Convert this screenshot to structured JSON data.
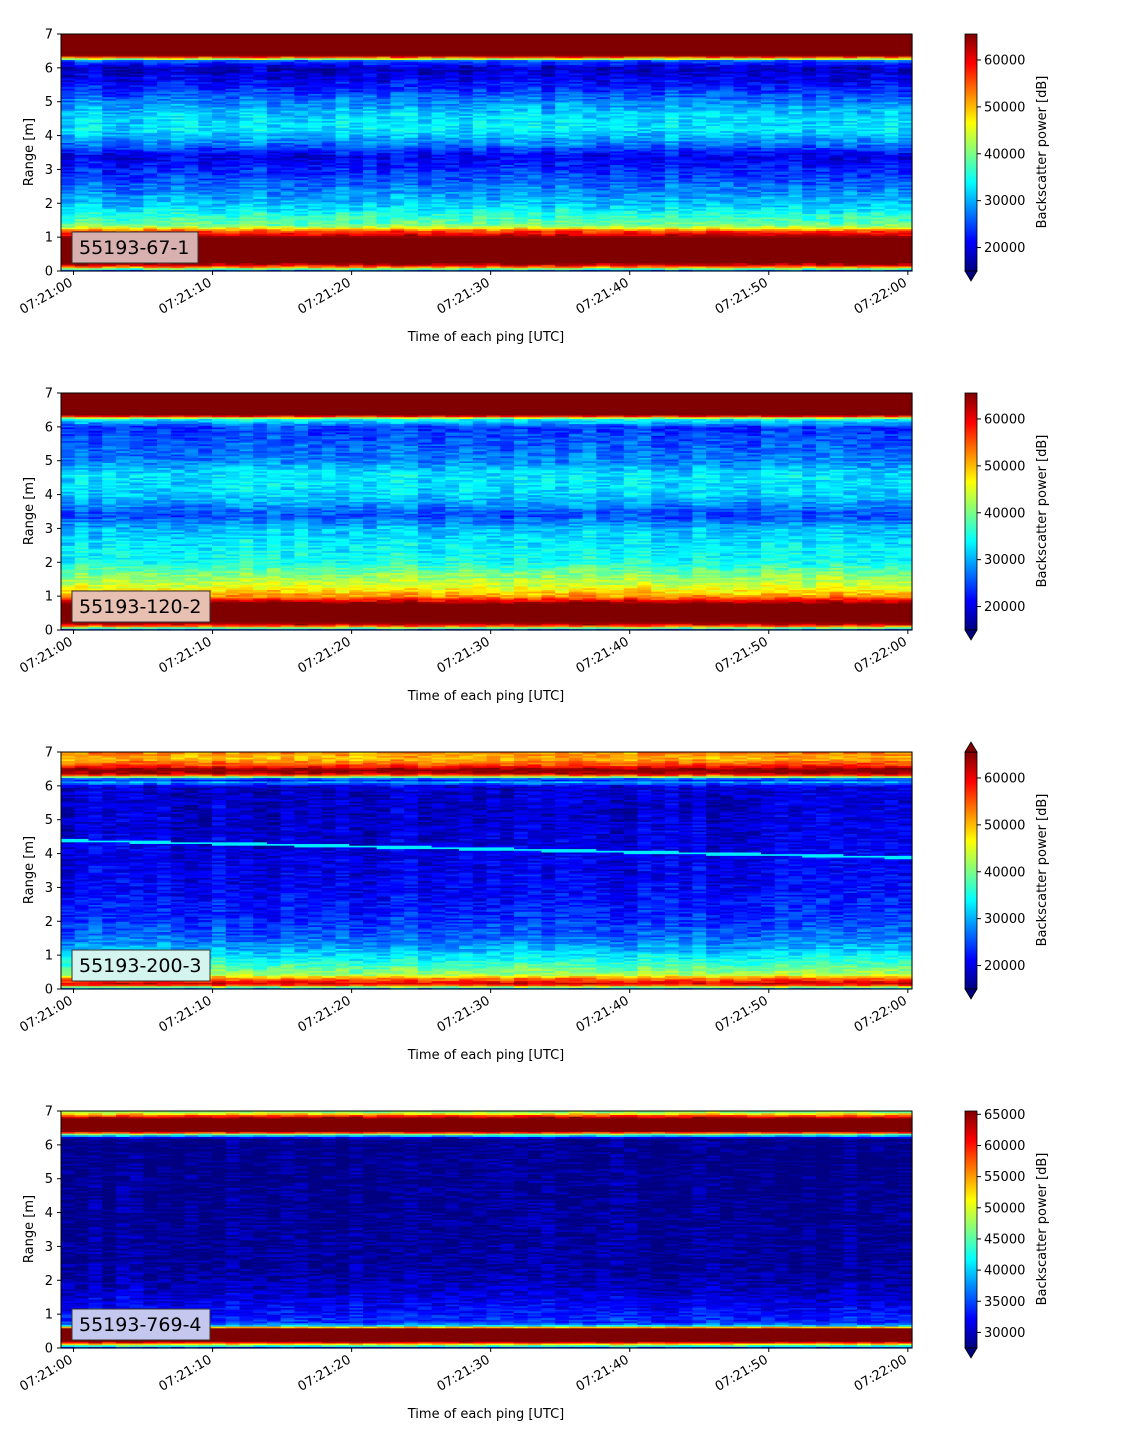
{
  "chart_data": [
    {
      "type": "heatmap",
      "label": "55193-67-1",
      "xlabel": "Time of each ping [UTC]",
      "ylabel": "Range [m]",
      "x_ticks": [
        "07:21:00",
        "07:21:10",
        "07:21:20",
        "07:21:30",
        "07:21:40",
        "07:21:50",
        "07:22:00"
      ],
      "y_ticks": [
        0,
        1,
        2,
        3,
        4,
        5,
        6,
        7
      ],
      "xlim": [
        "07:21:00",
        "07:22:00"
      ],
      "ylim": [
        0,
        7
      ],
      "colorbar": {
        "label": "Backscatter power [dB]",
        "vmin": 15000,
        "vmax": 65535,
        "ticks": [
          20000,
          30000,
          40000,
          50000,
          60000
        ],
        "extend": "min",
        "colormap": "jet"
      },
      "profile": [
        {
          "range_m": 0.0,
          "value": 20000
        },
        {
          "range_m": 0.15,
          "value": 58000
        },
        {
          "range_m": 0.25,
          "value": 65535
        },
        {
          "range_m": 1.0,
          "value": 65535
        },
        {
          "range_m": 1.2,
          "value": 55000
        },
        {
          "range_m": 1.35,
          "value": 40000
        },
        {
          "range_m": 1.7,
          "value": 35000
        },
        {
          "range_m": 2.0,
          "value": 31000
        },
        {
          "range_m": 2.5,
          "value": 27000
        },
        {
          "range_m": 3.0,
          "value": 23000
        },
        {
          "range_m": 3.4,
          "value": 20000
        },
        {
          "range_m": 3.8,
          "value": 28000
        },
        {
          "range_m": 4.2,
          "value": 33000
        },
        {
          "range_m": 4.6,
          "value": 32000
        },
        {
          "range_m": 5.0,
          "value": 28000
        },
        {
          "range_m": 5.5,
          "value": 22000
        },
        {
          "range_m": 6.0,
          "value": 18000
        },
        {
          "range_m": 6.22,
          "value": 25000
        },
        {
          "range_m": 6.3,
          "value": 50000
        },
        {
          "range_m": 6.38,
          "value": 65535
        },
        {
          "range_m": 7.0,
          "value": 65535
        }
      ]
    },
    {
      "type": "heatmap",
      "label": "55193-120-2",
      "xlabel": "Time of each ping [UTC]",
      "ylabel": "Range [m]",
      "x_ticks": [
        "07:21:00",
        "07:21:10",
        "07:21:20",
        "07:21:30",
        "07:21:40",
        "07:21:50",
        "07:22:00"
      ],
      "y_ticks": [
        0,
        1,
        2,
        3,
        4,
        5,
        6,
        7
      ],
      "xlim": [
        "07:21:00",
        "07:22:00"
      ],
      "ylim": [
        0,
        7
      ],
      "colorbar": {
        "label": "Backscatter power [dB]",
        "vmin": 15000,
        "vmax": 65535,
        "ticks": [
          20000,
          30000,
          40000,
          50000,
          60000
        ],
        "extend": "min",
        "colormap": "jet"
      },
      "profile": [
        {
          "range_m": 0.0,
          "value": 20000
        },
        {
          "range_m": 0.15,
          "value": 60000
        },
        {
          "range_m": 0.25,
          "value": 65535
        },
        {
          "range_m": 0.8,
          "value": 65535
        },
        {
          "range_m": 1.0,
          "value": 52000
        },
        {
          "range_m": 1.3,
          "value": 45000
        },
        {
          "range_m": 1.7,
          "value": 40000
        },
        {
          "range_m": 2.0,
          "value": 35000
        },
        {
          "range_m": 2.6,
          "value": 33000
        },
        {
          "range_m": 3.0,
          "value": 31000
        },
        {
          "range_m": 3.4,
          "value": 25000
        },
        {
          "range_m": 4.0,
          "value": 32000
        },
        {
          "range_m": 4.6,
          "value": 33000
        },
        {
          "range_m": 5.0,
          "value": 28000
        },
        {
          "range_m": 5.5,
          "value": 26000
        },
        {
          "range_m": 6.0,
          "value": 24000
        },
        {
          "range_m": 6.25,
          "value": 35000
        },
        {
          "range_m": 6.35,
          "value": 65535
        },
        {
          "range_m": 7.0,
          "value": 65535
        }
      ]
    },
    {
      "type": "heatmap",
      "label": "55193-200-3",
      "xlabel": "Time of each ping [UTC]",
      "ylabel": "Range [m]",
      "x_ticks": [
        "07:21:00",
        "07:21:10",
        "07:21:20",
        "07:21:30",
        "07:21:40",
        "07:21:50",
        "07:22:00"
      ],
      "y_ticks": [
        0,
        1,
        2,
        3,
        4,
        5,
        6,
        7
      ],
      "xlim": [
        "07:21:00",
        "07:22:00"
      ],
      "ylim": [
        0,
        7
      ],
      "colorbar": {
        "label": "Backscatter power [dB]",
        "vmin": 15000,
        "vmax": 65535,
        "ticks": [
          20000,
          30000,
          40000,
          50000,
          60000
        ],
        "extend": "both",
        "colormap": "jet"
      },
      "profile": [
        {
          "range_m": 0.0,
          "value": 22000
        },
        {
          "range_m": 0.15,
          "value": 62000
        },
        {
          "range_m": 0.3,
          "value": 55000
        },
        {
          "range_m": 0.45,
          "value": 42000
        },
        {
          "range_m": 0.8,
          "value": 36000
        },
        {
          "range_m": 1.2,
          "value": 30000
        },
        {
          "range_m": 1.6,
          "value": 26000
        },
        {
          "range_m": 2.2,
          "value": 23000
        },
        {
          "range_m": 3.0,
          "value": 21000
        },
        {
          "range_m": 4.0,
          "value": 20000
        },
        {
          "range_m": 5.0,
          "value": 19000
        },
        {
          "range_m": 6.0,
          "value": 19000
        },
        {
          "range_m": 6.12,
          "value": 30000
        },
        {
          "range_m": 6.2,
          "value": 20000
        },
        {
          "range_m": 6.35,
          "value": 62000
        },
        {
          "range_m": 6.5,
          "value": 65535
        },
        {
          "range_m": 6.6,
          "value": 57000
        },
        {
          "range_m": 6.8,
          "value": 50000
        },
        {
          "range_m": 7.0,
          "value": 52000
        }
      ],
      "trace": {
        "range_start_m": 4.4,
        "range_end_m": 3.9,
        "value": 33000
      }
    },
    {
      "type": "heatmap",
      "label": "55193-769-4",
      "xlabel": "Time of each ping [UTC]",
      "ylabel": "Range [m]",
      "x_ticks": [
        "07:21:00",
        "07:21:10",
        "07:21:20",
        "07:21:30",
        "07:21:40",
        "07:21:50",
        "07:22:00"
      ],
      "y_ticks": [
        0,
        1,
        2,
        3,
        4,
        5,
        6,
        7
      ],
      "xlim": [
        "07:21:00",
        "07:22:00"
      ],
      "ylim": [
        0,
        7
      ],
      "colorbar": {
        "label": "Backscatter power [dB]",
        "vmin": 27500,
        "vmax": 65535,
        "ticks": [
          30000,
          35000,
          40000,
          45000,
          50000,
          55000,
          60000,
          65000
        ],
        "extend": "min",
        "colormap": "jet"
      },
      "profile": [
        {
          "range_m": 0.0,
          "value": 30000
        },
        {
          "range_m": 0.2,
          "value": 65535
        },
        {
          "range_m": 0.6,
          "value": 65535
        },
        {
          "range_m": 0.65,
          "value": 42000
        },
        {
          "range_m": 0.75,
          "value": 34000
        },
        {
          "range_m": 1.2,
          "value": 32000
        },
        {
          "range_m": 1.8,
          "value": 29500
        },
        {
          "range_m": 2.3,
          "value": 28500
        },
        {
          "range_m": 6.2,
          "value": 27500
        },
        {
          "range_m": 6.32,
          "value": 45000
        },
        {
          "range_m": 6.4,
          "value": 65535
        },
        {
          "range_m": 6.8,
          "value": 65535
        },
        {
          "range_m": 6.9,
          "value": 55000
        },
        {
          "range_m": 7.0,
          "value": 45000
        }
      ]
    }
  ]
}
